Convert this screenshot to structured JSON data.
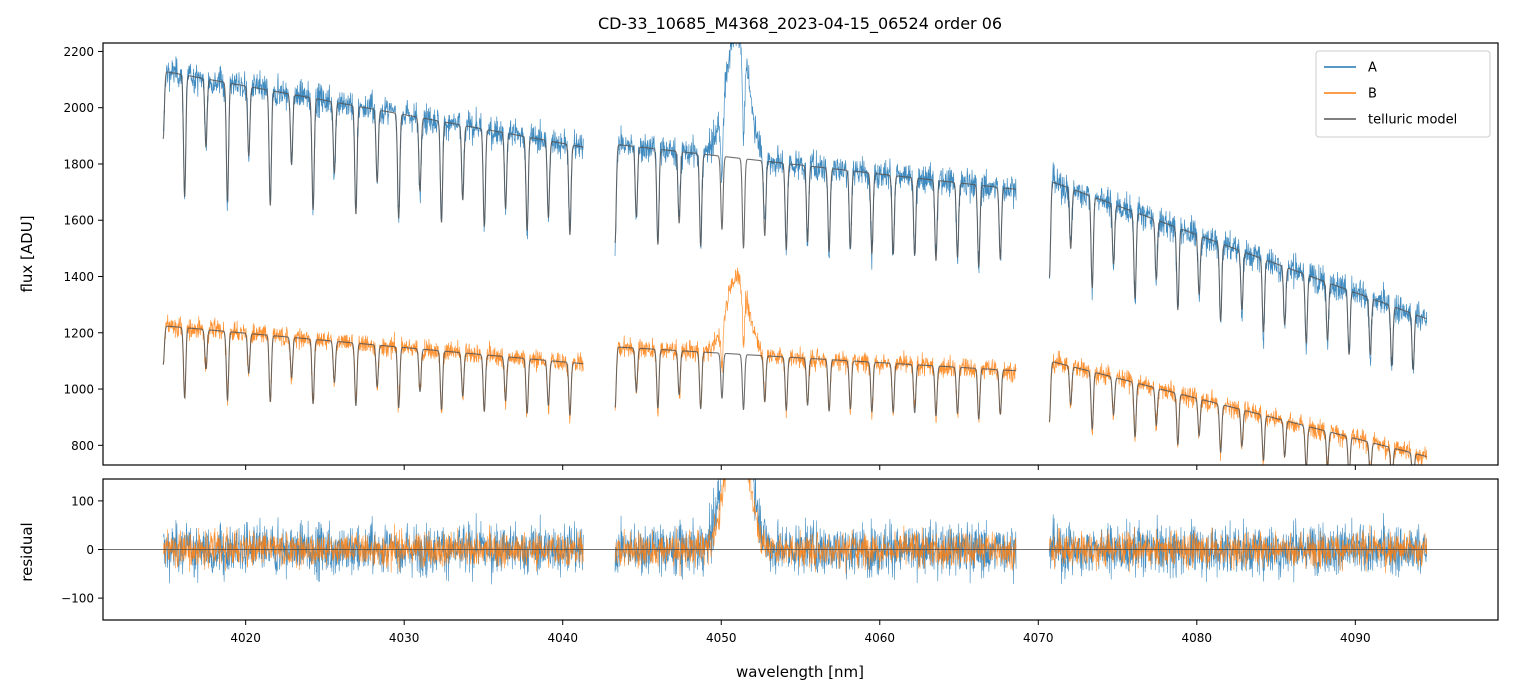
{
  "chart_data": [
    {
      "type": "line",
      "panel": "top",
      "title": "CD-33_10685_M4368_2023-04-15_06524  order 06",
      "ylabel": "flux [ADU]",
      "xlim": [
        4011,
        4099
      ],
      "ylim": [
        730,
        2230
      ],
      "grid": false,
      "legend_position": "top-right",
      "x_ticks": [
        4020,
        4030,
        4040,
        4050,
        4060,
        4070,
        4080,
        4090
      ],
      "y_ticks": [
        800,
        1000,
        1200,
        1400,
        1600,
        1800,
        2000,
        2200
      ],
      "y_tick_labels": [
        "800",
        "1000",
        "1200",
        "1400",
        "1600",
        "1800",
        "2000",
        "2200"
      ],
      "segments": [
        {
          "start": 4014.8,
          "end": 4041.3,
          "a_start": 2130,
          "a_end": 1860,
          "b_start": 1225,
          "b_end": 1090
        },
        {
          "start": 4043.3,
          "end": 4068.6,
          "a_start": 1870,
          "a_end": 1710,
          "b_start": 1150,
          "b_end": 1065
        },
        {
          "start": 4070.7,
          "end": 4094.5,
          "a_start": 1740,
          "a_end": 1250,
          "b_start": 1100,
          "b_end": 760
        }
      ],
      "emission_feature": {
        "center": 4051.0,
        "width": 0.7,
        "a_peak": 2280,
        "b_peak": 1400
      },
      "absorption_spacing_nm": 1.35,
      "series": [
        {
          "name": "A",
          "color": "#1f77b4"
        },
        {
          "name": "B",
          "color": "#ff7f0e"
        },
        {
          "name": "telluric model",
          "color": "#555555"
        }
      ]
    },
    {
      "type": "line",
      "panel": "bottom",
      "xlabel": "wavelength [nm]",
      "ylabel": "residual",
      "xlim": [
        4011,
        4099
      ],
      "ylim": [
        -145,
        145
      ],
      "grid": false,
      "zero_line": 0,
      "x_ticks": [
        4020,
        4030,
        4040,
        4050,
        4060,
        4070,
        4080,
        4090
      ],
      "x_tick_labels": [
        "4020",
        "4030",
        "4040",
        "4050",
        "4060",
        "4070",
        "4080",
        "4090"
      ],
      "y_ticks": [
        -100,
        0,
        100
      ],
      "y_tick_labels": [
        "−100",
        "0",
        "100"
      ],
      "series": [
        {
          "name": "A",
          "color": "#1f77b4"
        },
        {
          "name": "B",
          "color": "#ff7f0e"
        }
      ]
    }
  ]
}
